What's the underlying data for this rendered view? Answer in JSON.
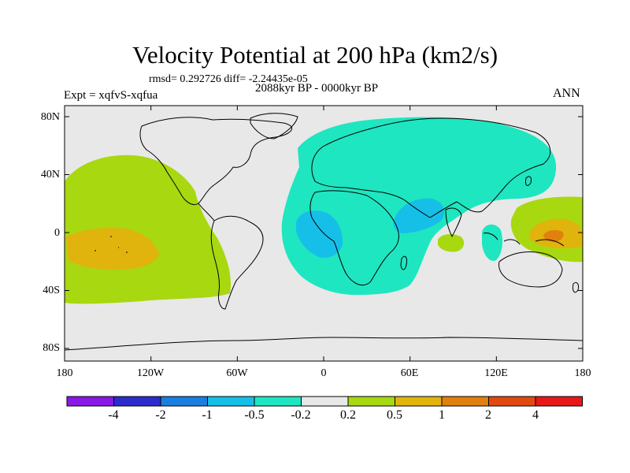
{
  "title": "Velocity Potential at 200 hPa (km2/s)",
  "stats": "rmsd= 0.292726 diff= -2.24435e-05",
  "expt": "Expt = xqfvS-xqfua",
  "period": "2088kyr BP - 0000kyr BP",
  "season": "ANN",
  "lat_labels": [
    "80N",
    "40N",
    "0",
    "40S",
    "80S"
  ],
  "lon_labels": [
    "180",
    "120W",
    "60W",
    "0",
    "60E",
    "120E",
    "180"
  ],
  "colorbar": {
    "labels": [
      "-4",
      "-2",
      "-1",
      "-0.5",
      "-0.2",
      "0.2",
      "0.5",
      "1",
      "2",
      "4"
    ],
    "colors": [
      "#8a18e6",
      "#2c2ccc",
      "#1a7ee0",
      "#16bfe8",
      "#1ee6c0",
      "#e8e8e8",
      "#a8d810",
      "#e0b40c",
      "#e0800e",
      "#e04a10",
      "#e81818"
    ]
  },
  "map_colors": {
    "background": "#e8e8e8",
    "neg_weak": "#1ee6c0",
    "neg_mid": "#16bfe8",
    "pos_weak": "#a8d810",
    "pos_mid": "#e0b40c",
    "pos_strong": "#e0800e"
  }
}
